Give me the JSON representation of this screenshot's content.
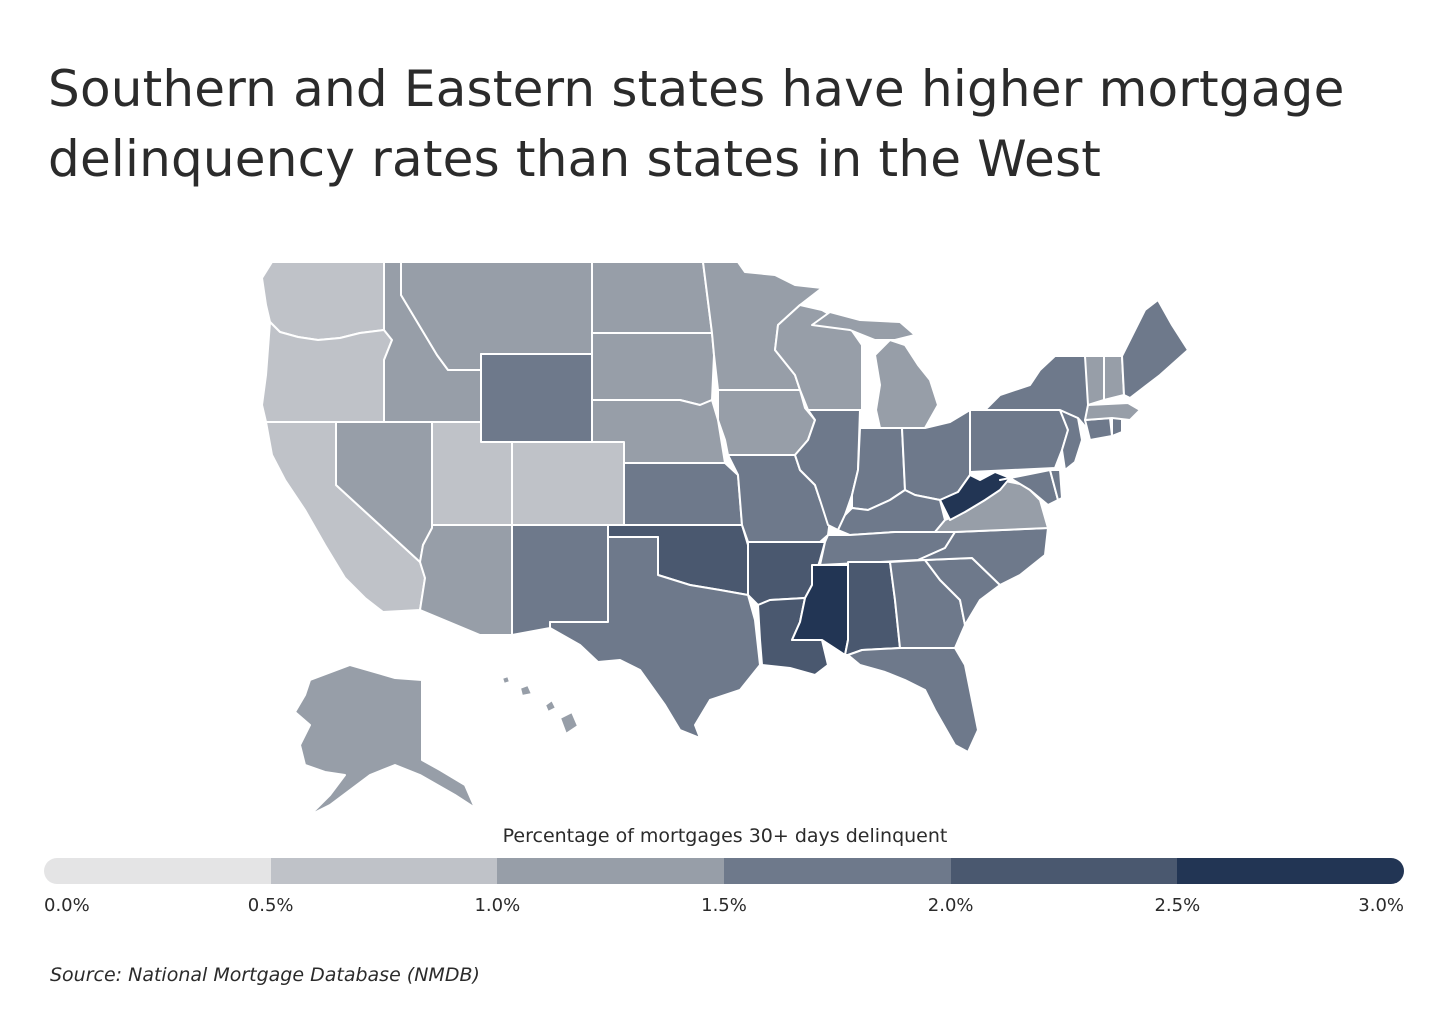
{
  "title": "Southern and Eastern states have higher mortgage delinquency rates than states in the West",
  "legend": {
    "title": "Percentage of mortgages 30+ days delinquent",
    "ticks": [
      "0.0%",
      "0.5%",
      "1.0%",
      "1.5%",
      "2.0%",
      "2.5%",
      "3.0%"
    ],
    "colors": [
      "#e4e4e5",
      "#bfc2c8",
      "#979ea8",
      "#6e798b",
      "#4a586f",
      "#223554"
    ]
  },
  "source": "Source:  National Mortgage Database (NMDB)",
  "chart_data": {
    "type": "choropleth",
    "bins": [
      [
        0.0,
        0.5
      ],
      [
        0.5,
        1.0
      ],
      [
        1.0,
        1.5
      ],
      [
        1.5,
        2.0
      ],
      [
        2.0,
        2.5
      ],
      [
        2.5,
        3.0
      ]
    ],
    "states": {
      "WA": 2,
      "OR": 2,
      "CA": 2,
      "NV": 3,
      "ID": 3,
      "MT": 3,
      "WY": 4,
      "UT": 2,
      "CO": 2,
      "AZ": 3,
      "NM": 4,
      "ND": 3,
      "SD": 3,
      "NE": 3,
      "KS": 4,
      "OK": 5,
      "TX": 4,
      "MN": 3,
      "IA": 3,
      "MO": 4,
      "AR": 5,
      "LA": 5,
      "WI": 3,
      "IL": 4,
      "MI": 3,
      "IN": 4,
      "OH": 4,
      "KY": 4,
      "TN": 4,
      "MS": 6,
      "AL": 5,
      "GA": 4,
      "FL": 4,
      "SC": 4,
      "NC": 4,
      "VA": 3,
      "WV": 6,
      "MD": 4,
      "DE": 4,
      "PA": 4,
      "NJ": 4,
      "NY": 4,
      "CT": 4,
      "RI": 4,
      "MA": 3,
      "VT": 3,
      "NH": 3,
      "ME": 4,
      "AK": 3,
      "HI": 3
    }
  }
}
